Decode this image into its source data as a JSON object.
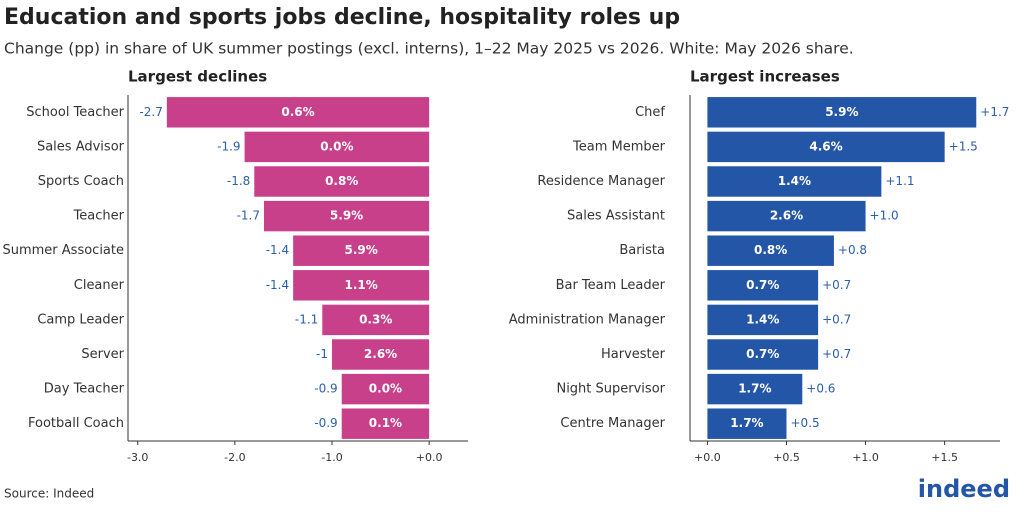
{
  "title": "Education and sports jobs decline, hospitality roles up",
  "subtitle": "Change (pp) in share of UK summer postings (excl. interns), 1–22 May 2025 vs 2026. White: May 2026 share.",
  "source": "Source: Indeed",
  "logo": "indeed",
  "chart_data": [
    {
      "type": "bar",
      "orientation": "horizontal",
      "title": "Largest declines",
      "color": "#c9408a",
      "categories": [
        "School Teacher",
        "Sales Advisor",
        "Sports Coach",
        "Teacher",
        "Summer Associate",
        "Cleaner",
        "Camp Leader",
        "Server",
        "Day Teacher",
        "Football Coach"
      ],
      "values": [
        -2.7,
        -1.9,
        -1.8,
        -1.7,
        -1.4,
        -1.4,
        -1.1,
        -1.0,
        -0.9,
        -0.9
      ],
      "shares": [
        "0.6%",
        "0.0%",
        "0.8%",
        "5.9%",
        "5.9%",
        "1.1%",
        "0.3%",
        "2.6%",
        "0.0%",
        "0.1%"
      ],
      "xlim": [
        -3.1,
        0.4
      ],
      "xticks": [
        {
          "value": -3,
          "label": "-3.0"
        },
        {
          "value": -2,
          "label": "-2.0"
        },
        {
          "value": -1,
          "label": "-1.0"
        },
        {
          "value": 0,
          "label": "+0.0"
        }
      ]
    },
    {
      "type": "bar",
      "orientation": "horizontal",
      "title": "Largest increases",
      "color": "#2456a8",
      "categories": [
        "Chef",
        "Team Member",
        "Residence Manager",
        "Sales Assistant",
        "Barista",
        "Bar Team Leader",
        "Administration Manager",
        "Harvester",
        "Night Supervisor",
        "Centre Manager"
      ],
      "values": [
        1.7,
        1.5,
        1.1,
        1.0,
        0.8,
        0.7,
        0.7,
        0.7,
        0.6,
        0.5
      ],
      "value_labels": [
        "+1.7",
        "+1.5",
        "+1.1",
        "+1.0",
        "+0.8",
        "+0.7",
        "+0.7",
        "+0.7",
        "+0.6",
        "+0.5"
      ],
      "shares": [
        "5.9%",
        "4.6%",
        "1.4%",
        "2.6%",
        "0.8%",
        "0.7%",
        "1.4%",
        "0.7%",
        "1.7%",
        "1.7%"
      ],
      "xlim": [
        -0.11,
        1.85
      ],
      "xticks": [
        {
          "value": 0,
          "label": "+0.0"
        },
        {
          "value": 0.5,
          "label": "+0.5"
        },
        {
          "value": 1,
          "label": "+1.0"
        },
        {
          "value": 1.5,
          "label": "+1.5"
        }
      ]
    }
  ]
}
